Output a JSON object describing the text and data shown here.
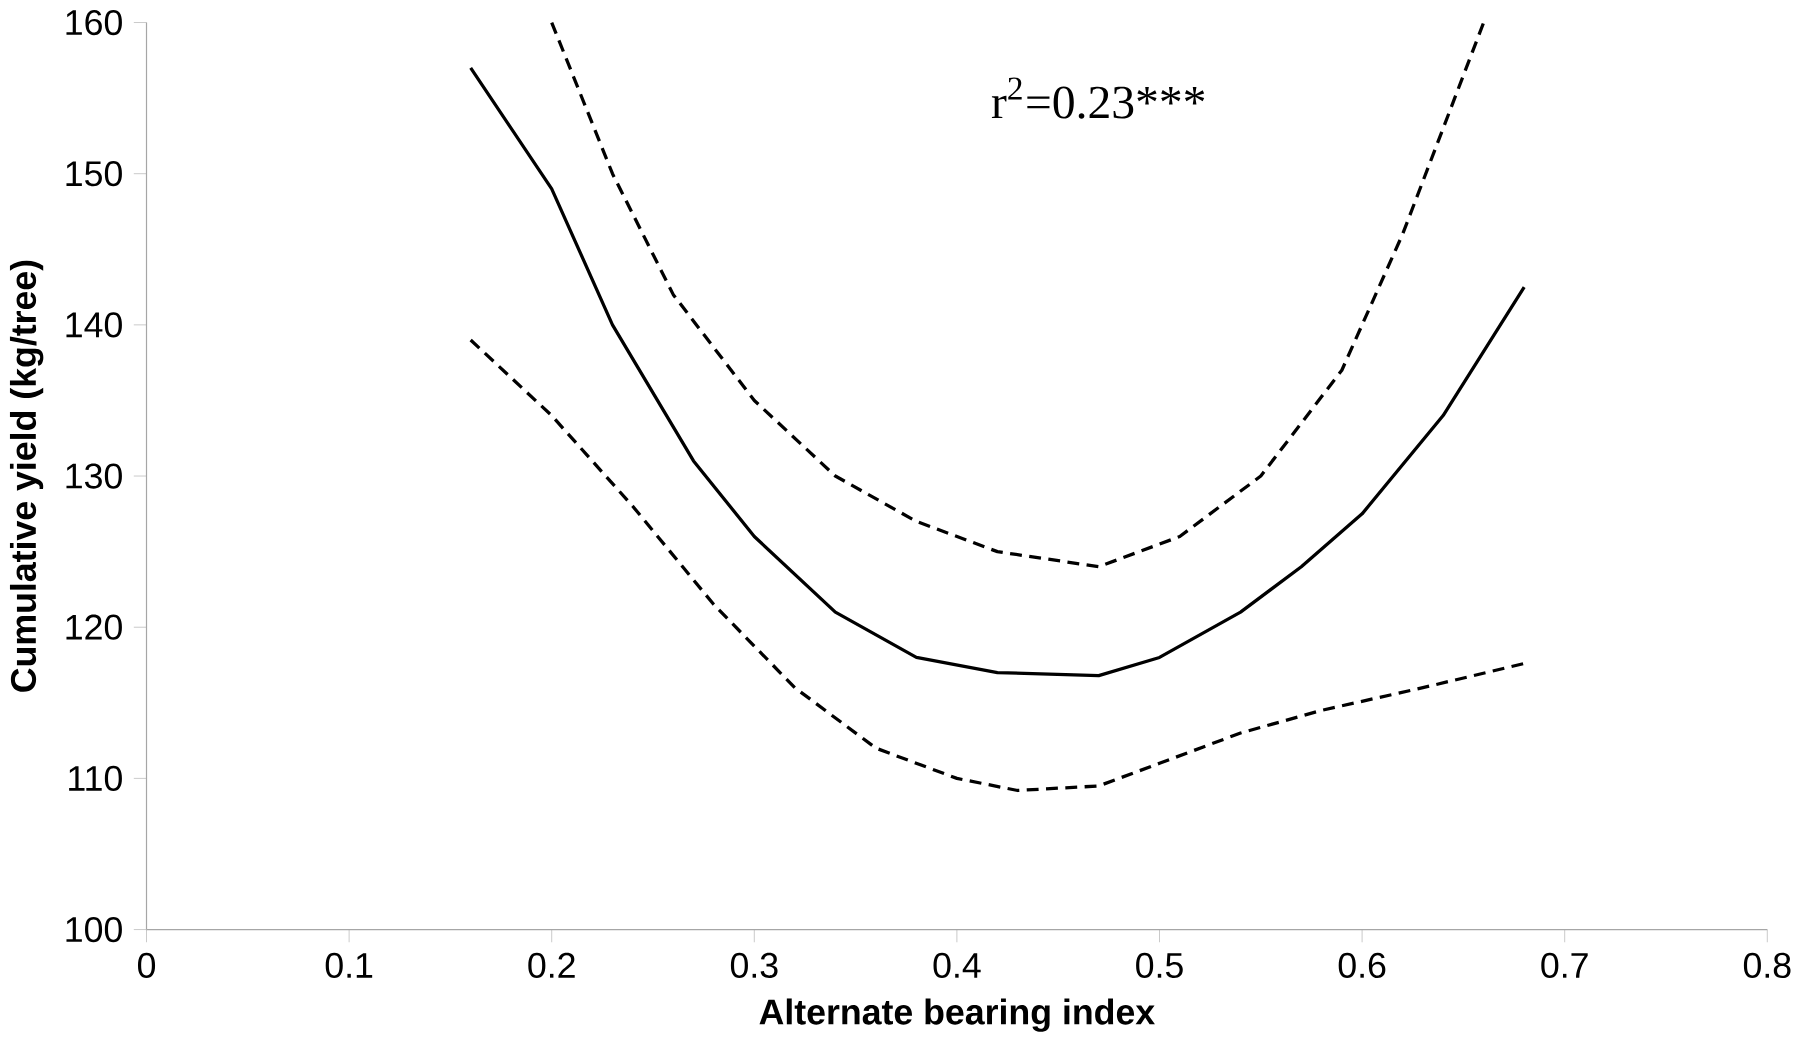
{
  "chart_data": {
    "type": "line",
    "xlabel": "Alternate bearing index",
    "ylabel": "Cumulative yield (kg/tree)",
    "xlim": [
      0,
      0.8
    ],
    "xticks": [
      0,
      0.1,
      0.2,
      0.3,
      0.4,
      0.5,
      0.6,
      0.7,
      0.8
    ],
    "ylim": [
      100,
      160
    ],
    "yticks": [
      100,
      110,
      120,
      130,
      140,
      150,
      160
    ],
    "grid": false,
    "marker": "none",
    "annotations": [
      "r$^{2}$=0.23***"
    ],
    "series": [
      {
        "color": "#000000",
        "line_style": "solid",
        "x": [
          0.16,
          0.2,
          0.23,
          0.27,
          0.3,
          0.34,
          0.38,
          0.42,
          0.47,
          0.5,
          0.54,
          0.57,
          0.6,
          0.64,
          0.68
        ],
        "values": [
          157,
          149,
          140,
          131,
          126,
          121,
          118,
          117,
          116.8,
          118,
          121,
          124,
          127.5,
          134,
          142.5
        ]
      },
      {
        "color": "#000000",
        "line_style": "dashed",
        "x": [
          0.2,
          0.23,
          0.26,
          0.3,
          0.34,
          0.38,
          0.42,
          0.47,
          0.51,
          0.55,
          0.59,
          0.62,
          0.66
        ],
        "values": [
          160,
          150,
          142,
          135,
          130,
          127,
          125,
          124,
          126,
          130,
          137,
          146,
          160
        ]
      },
      {
        "color": "#000000",
        "line_style": "dashed",
        "x": [
          0.16,
          0.2,
          0.24,
          0.28,
          0.32,
          0.36,
          0.4,
          0.43,
          0.47,
          0.5,
          0.54,
          0.58,
          0.63,
          0.68
        ],
        "values": [
          139,
          134,
          128,
          121.5,
          116,
          112,
          110,
          109.2,
          109.5,
          111,
          113,
          114.5,
          116,
          117.6
        ]
      }
    ]
  }
}
